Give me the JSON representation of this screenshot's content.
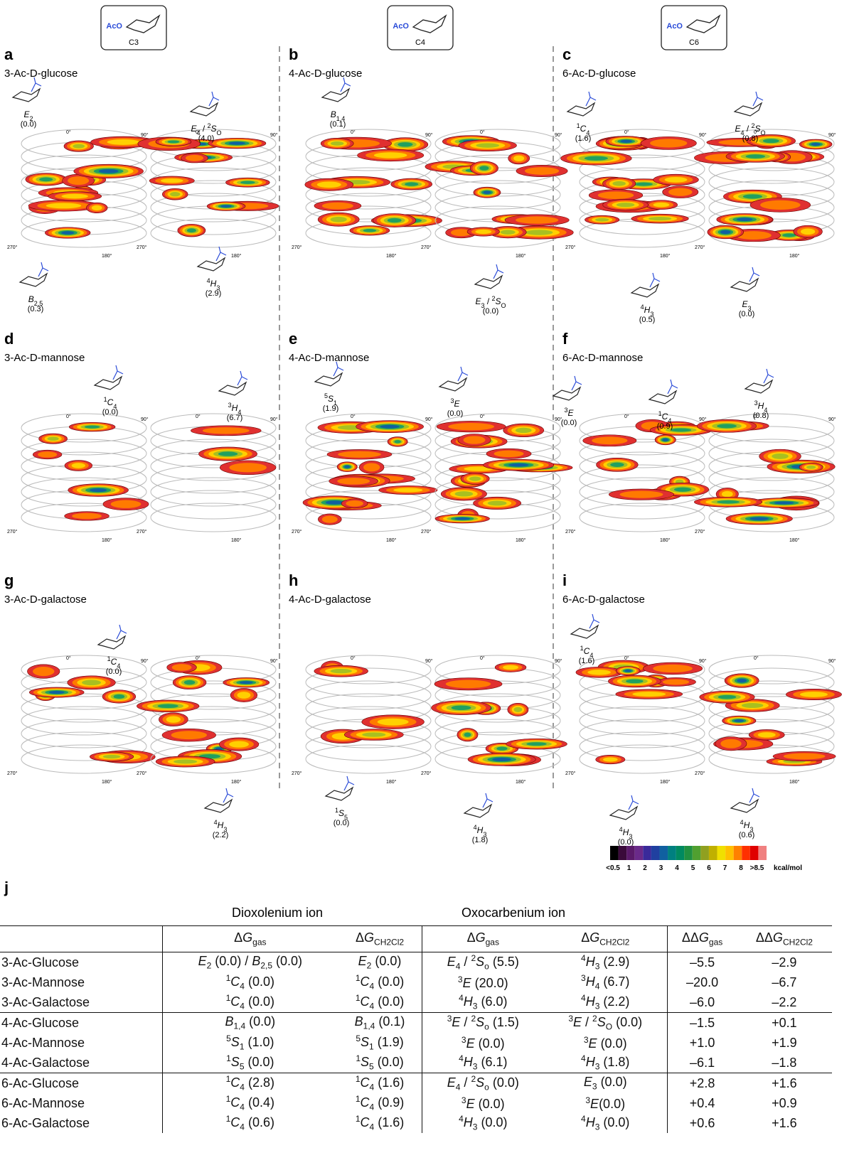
{
  "header_boxes": [
    {
      "group": "AcO",
      "label": "C3"
    },
    {
      "group": "AcO",
      "label": "C4"
    },
    {
      "group": "AcO",
      "label": "C6"
    }
  ],
  "angle_labels": [
    "0°",
    "90°",
    "180°",
    "270°"
  ],
  "panels": [
    {
      "letter": "a",
      "title": "3-Ac-D-glucose",
      "conformers": [
        {
          "label": [
            {
              "i": "E"
            },
            {
              "sub": "2"
            }
          ],
          "energy": "(0.0)"
        },
        {
          "label": [
            {
              "i": "E"
            },
            {
              "sub": "4"
            },
            {
              "t": " / "
            },
            {
              "sup": "2"
            },
            {
              "i": "S"
            },
            {
              "sub": "O"
            }
          ],
          "energy": "(4.0)"
        },
        {
          "label": [
            {
              "i": "B"
            },
            {
              "sub": "2,5"
            }
          ],
          "energy": "(0.3)"
        },
        {
          "label": [
            {
              "sup": "4"
            },
            {
              "i": "H"
            },
            {
              "sub": "3"
            }
          ],
          "energy": "(2.9)"
        }
      ]
    },
    {
      "letter": "b",
      "title": "4-Ac-D-glucose",
      "conformers": [
        {
          "label": [
            {
              "i": "B"
            },
            {
              "sub": "1,4"
            }
          ],
          "energy": "(0.1)"
        },
        {
          "label": [
            {
              "i": "E"
            },
            {
              "sub": "3"
            },
            {
              "t": " / "
            },
            {
              "sup": "2"
            },
            {
              "i": "S"
            },
            {
              "sub": "O"
            }
          ],
          "energy": "(0.0)"
        }
      ]
    },
    {
      "letter": "c",
      "title": "6-Ac-D-glucose",
      "conformers": [
        {
          "label": [
            {
              "sup": "1"
            },
            {
              "i": "C"
            },
            {
              "sub": "4"
            }
          ],
          "energy": "(1.6)"
        },
        {
          "label": [
            {
              "i": "E"
            },
            {
              "sub": "4"
            },
            {
              "t": " / "
            },
            {
              "sup": "2"
            },
            {
              "i": "S"
            },
            {
              "sub": "O"
            }
          ],
          "energy": "(0.8)"
        },
        {
          "label": [
            {
              "sup": "4"
            },
            {
              "i": "H"
            },
            {
              "sub": "3"
            }
          ],
          "energy": "(0.5)"
        },
        {
          "label": [
            {
              "i": "E"
            },
            {
              "sub": "3"
            }
          ],
          "energy": "(0.0)"
        }
      ]
    },
    {
      "letter": "d",
      "title": "3-Ac-D-mannose",
      "conformers": [
        {
          "label": [
            {
              "sup": "1"
            },
            {
              "i": "C"
            },
            {
              "sub": "4"
            }
          ],
          "energy": "(0.0)"
        },
        {
          "label": [
            {
              "sup": "3"
            },
            {
              "i": "H"
            },
            {
              "sub": "4"
            }
          ],
          "energy": "(6.7)"
        }
      ]
    },
    {
      "letter": "e",
      "title": "4-Ac-D-mannose",
      "conformers": [
        {
          "label": [
            {
              "sup": "5"
            },
            {
              "i": "S"
            },
            {
              "sub": "1"
            }
          ],
          "energy": "(1.9)"
        },
        {
          "label": [
            {
              "sup": "3"
            },
            {
              "i": "E"
            }
          ],
          "energy": "(0.0)"
        }
      ]
    },
    {
      "letter": "f",
      "title": "6-Ac-D-mannose",
      "conformers": [
        {
          "label": [
            {
              "sup": "3"
            },
            {
              "i": "E"
            }
          ],
          "energy": "(0.0)"
        },
        {
          "label": [
            {
              "sup": "1"
            },
            {
              "i": "C"
            },
            {
              "sub": "4"
            }
          ],
          "energy": "(0.9)"
        },
        {
          "label": [
            {
              "sup": "3"
            },
            {
              "i": "H"
            },
            {
              "sub": "4"
            }
          ],
          "energy": "(0.8)"
        }
      ]
    },
    {
      "letter": "g",
      "title": "3-Ac-D-galactose",
      "conformers": [
        {
          "label": [
            {
              "sup": "1"
            },
            {
              "i": "C"
            },
            {
              "sub": "4"
            }
          ],
          "energy": "(0.0)"
        },
        {
          "label": [
            {
              "sup": "4"
            },
            {
              "i": "H"
            },
            {
              "sub": "3"
            }
          ],
          "energy": "(2.2)"
        }
      ]
    },
    {
      "letter": "h",
      "title": "4-Ac-D-galactose",
      "conformers": [
        {
          "label": [
            {
              "sup": "1"
            },
            {
              "i": "S"
            },
            {
              "sub": "5"
            }
          ],
          "energy": "(0.0)"
        },
        {
          "label": [
            {
              "sup": "4"
            },
            {
              "i": "H"
            },
            {
              "sub": "3"
            }
          ],
          "energy": "(1.8)"
        }
      ]
    },
    {
      "letter": "i",
      "title": "6-Ac-D-galactose",
      "conformers": [
        {
          "label": [
            {
              "sup": "1"
            },
            {
              "i": "C"
            },
            {
              "sub": "4"
            }
          ],
          "energy": "(1.6)"
        },
        {
          "label": [
            {
              "sup": "4"
            },
            {
              "i": "H"
            },
            {
              "sub": "3"
            }
          ],
          "energy": "(0.0)"
        },
        {
          "label": [
            {
              "sup": "4"
            },
            {
              "i": "H"
            },
            {
              "sub": "3"
            }
          ],
          "energy": "(0.6)"
        }
      ]
    }
  ],
  "colorbar": {
    "colors": [
      "#000000",
      "#3a0a3a",
      "#5a1a6a",
      "#6a2a8a",
      "#3a2a9a",
      "#2040a0",
      "#1060a0",
      "#008080",
      "#008a60",
      "#209040",
      "#50a030",
      "#90a020",
      "#c0b000",
      "#f0e000",
      "#ffc000",
      "#ff8000",
      "#ff3000",
      "#e00000",
      "#f08080"
    ],
    "labels": [
      "<0.5",
      "1",
      "2",
      "3",
      "4",
      "5",
      "6",
      "7",
      "8",
      ">8.5"
    ],
    "unit": "kcal/mol"
  },
  "table": {
    "letter": "j",
    "groups": [
      "Dioxolenium ion",
      "Oxocarbenium ion"
    ],
    "header": [
      [
        {
          "t": "Δ"
        },
        {
          "i": "G"
        },
        {
          "sub": "gas"
        }
      ],
      [
        {
          "t": "Δ"
        },
        {
          "i": "G"
        },
        {
          "sub": "CH2Cl2"
        }
      ],
      [
        {
          "t": "Δ"
        },
        {
          "i": "G"
        },
        {
          "sub": "gas"
        }
      ],
      [
        {
          "t": "Δ"
        },
        {
          "i": "G"
        },
        {
          "sub": "CH2Cl2"
        }
      ],
      [
        {
          "t": "ΔΔ"
        },
        {
          "i": "G"
        },
        {
          "sub": "gas"
        }
      ],
      [
        {
          "t": "ΔΔ"
        },
        {
          "i": "G"
        },
        {
          "sub": "CH2Cl2"
        }
      ]
    ],
    "rows": [
      [
        [
          {
            "t": "3-Ac-Glucose"
          }
        ],
        [
          {
            "i": "E"
          },
          {
            "sub": "2"
          },
          {
            "t": " (0.0) / "
          },
          {
            "i": "B"
          },
          {
            "sub": "2,5"
          },
          {
            "t": " (0.0)"
          }
        ],
        [
          {
            "i": "E"
          },
          {
            "sub": "2"
          },
          {
            "t": " (0.0)"
          }
        ],
        [
          {
            "i": "E"
          },
          {
            "sub": "4"
          },
          {
            "t": " / "
          },
          {
            "sup": "2"
          },
          {
            "i": "S"
          },
          {
            "sub": "o"
          },
          {
            "t": " (5.5)"
          }
        ],
        [
          {
            "sup": "4"
          },
          {
            "i": "H"
          },
          {
            "sub": "3"
          },
          {
            "t": " (2.9)"
          }
        ],
        [
          {
            "t": "–5.5"
          }
        ],
        [
          {
            "t": "–2.9"
          }
        ]
      ],
      [
        [
          {
            "t": "3-Ac-Mannose"
          }
        ],
        [
          {
            "sup": "1"
          },
          {
            "i": "C"
          },
          {
            "sub": "4"
          },
          {
            "t": " (0.0)"
          }
        ],
        [
          {
            "sup": "1"
          },
          {
            "i": "C"
          },
          {
            "sub": "4"
          },
          {
            "t": " (0.0)"
          }
        ],
        [
          {
            "sup": "3"
          },
          {
            "i": "E"
          },
          {
            "t": " (20.0)"
          }
        ],
        [
          {
            "sup": "3"
          },
          {
            "i": "H"
          },
          {
            "sub": "4"
          },
          {
            "t": " (6.7)"
          }
        ],
        [
          {
            "t": "–20.0"
          }
        ],
        [
          {
            "t": "–6.7"
          }
        ]
      ],
      [
        [
          {
            "t": "3-Ac-Galactose"
          }
        ],
        [
          {
            "sup": "1"
          },
          {
            "i": "C"
          },
          {
            "sub": "4"
          },
          {
            "t": " (0.0)"
          }
        ],
        [
          {
            "sup": "1"
          },
          {
            "i": "C"
          },
          {
            "sub": "4"
          },
          {
            "t": " (0.0)"
          }
        ],
        [
          {
            "sup": "4"
          },
          {
            "i": "H"
          },
          {
            "sub": "3"
          },
          {
            "t": " (6.0)"
          }
        ],
        [
          {
            "sup": "4"
          },
          {
            "i": "H"
          },
          {
            "sub": "3"
          },
          {
            "t": " (2.2)"
          }
        ],
        [
          {
            "t": "–6.0"
          }
        ],
        [
          {
            "t": "–2.2"
          }
        ]
      ],
      [
        [
          {
            "t": "4-Ac-Glucose"
          }
        ],
        [
          {
            "i": "B"
          },
          {
            "sub": "1,4"
          },
          {
            "t": " (0.0)"
          }
        ],
        [
          {
            "i": "B"
          },
          {
            "sub": "1,4"
          },
          {
            "t": " (0.1)"
          }
        ],
        [
          {
            "sup": "3"
          },
          {
            "i": "E"
          },
          {
            "t": " / "
          },
          {
            "sup": "2"
          },
          {
            "i": "S"
          },
          {
            "sub": "o"
          },
          {
            "t": " (1.5)"
          }
        ],
        [
          {
            "sup": "3"
          },
          {
            "i": "E"
          },
          {
            "t": " / "
          },
          {
            "sup": "2"
          },
          {
            "i": "S"
          },
          {
            "sub": "O"
          },
          {
            "t": " (0.0)"
          }
        ],
        [
          {
            "t": "–1.5"
          }
        ],
        [
          {
            "t": "+0.1"
          }
        ]
      ],
      [
        [
          {
            "t": "4-Ac-Mannose"
          }
        ],
        [
          {
            "sup": "5"
          },
          {
            "i": "S"
          },
          {
            "sub": "1"
          },
          {
            "t": " (1.0)"
          }
        ],
        [
          {
            "sup": "5"
          },
          {
            "i": "S"
          },
          {
            "sub": "1"
          },
          {
            "t": " (1.9)"
          }
        ],
        [
          {
            "sup": "3"
          },
          {
            "i": "E"
          },
          {
            "t": " (0.0)"
          }
        ],
        [
          {
            "sup": "3"
          },
          {
            "i": "E"
          },
          {
            "t": " (0.0)"
          }
        ],
        [
          {
            "t": "+1.0"
          }
        ],
        [
          {
            "t": "+1.9"
          }
        ]
      ],
      [
        [
          {
            "t": "4-Ac-Galactose"
          }
        ],
        [
          {
            "sup": "1"
          },
          {
            "i": "S"
          },
          {
            "sub": "5"
          },
          {
            "t": " (0.0)"
          }
        ],
        [
          {
            "sup": "1"
          },
          {
            "i": "S"
          },
          {
            "sub": "5"
          },
          {
            "t": " (0.0)"
          }
        ],
        [
          {
            "sup": "4"
          },
          {
            "i": "H"
          },
          {
            "sub": "3"
          },
          {
            "t": " (6.1)"
          }
        ],
        [
          {
            "sup": "4"
          },
          {
            "i": "H"
          },
          {
            "sub": "3"
          },
          {
            "t": " (1.8)"
          }
        ],
        [
          {
            "t": "–6.1"
          }
        ],
        [
          {
            "t": "–1.8"
          }
        ]
      ],
      [
        [
          {
            "t": "6-Ac-Glucose"
          }
        ],
        [
          {
            "sup": "1"
          },
          {
            "i": "C"
          },
          {
            "sub": "4"
          },
          {
            "t": " (2.8)"
          }
        ],
        [
          {
            "sup": "1"
          },
          {
            "i": "C"
          },
          {
            "sub": "4"
          },
          {
            "t": " (1.6)"
          }
        ],
        [
          {
            "i": "E"
          },
          {
            "sub": "4"
          },
          {
            "t": " / "
          },
          {
            "sup": "2"
          },
          {
            "i": "S"
          },
          {
            "sub": "o"
          },
          {
            "t": " (0.0)"
          }
        ],
        [
          {
            "i": "E"
          },
          {
            "sub": "3"
          },
          {
            "t": " (0.0)"
          }
        ],
        [
          {
            "t": "+2.8"
          }
        ],
        [
          {
            "t": "+1.6"
          }
        ]
      ],
      [
        [
          {
            "t": "6-Ac-Mannose"
          }
        ],
        [
          {
            "sup": "1"
          },
          {
            "i": "C"
          },
          {
            "sub": "4"
          },
          {
            "t": " (0.4)"
          }
        ],
        [
          {
            "sup": "1"
          },
          {
            "i": "C"
          },
          {
            "sub": "4"
          },
          {
            "t": " (0.9)"
          }
        ],
        [
          {
            "sup": "3"
          },
          {
            "i": "E"
          },
          {
            "t": " (0.0)"
          }
        ],
        [
          {
            "sup": "3"
          },
          {
            "i": "E"
          },
          {
            "t": "(0.0)"
          }
        ],
        [
          {
            "t": "+0.4"
          }
        ],
        [
          {
            "t": "+0.9"
          }
        ]
      ],
      [
        [
          {
            "t": "6-Ac-Galactose"
          }
        ],
        [
          {
            "sup": "1"
          },
          {
            "i": "C"
          },
          {
            "sub": "4"
          },
          {
            "t": " (0.6)"
          }
        ],
        [
          {
            "sup": "1"
          },
          {
            "i": "C"
          },
          {
            "sub": "4"
          },
          {
            "t": " (1.6)"
          }
        ],
        [
          {
            "sup": "4"
          },
          {
            "i": "H"
          },
          {
            "sub": "3"
          },
          {
            "t": " (0.0)"
          }
        ],
        [
          {
            "sup": "4"
          },
          {
            "i": "H"
          },
          {
            "sub": "3"
          },
          {
            "t": " (0.0)"
          }
        ],
        [
          {
            "t": "+0.6"
          }
        ],
        [
          {
            "t": "+1.6"
          }
        ]
      ]
    ]
  }
}
